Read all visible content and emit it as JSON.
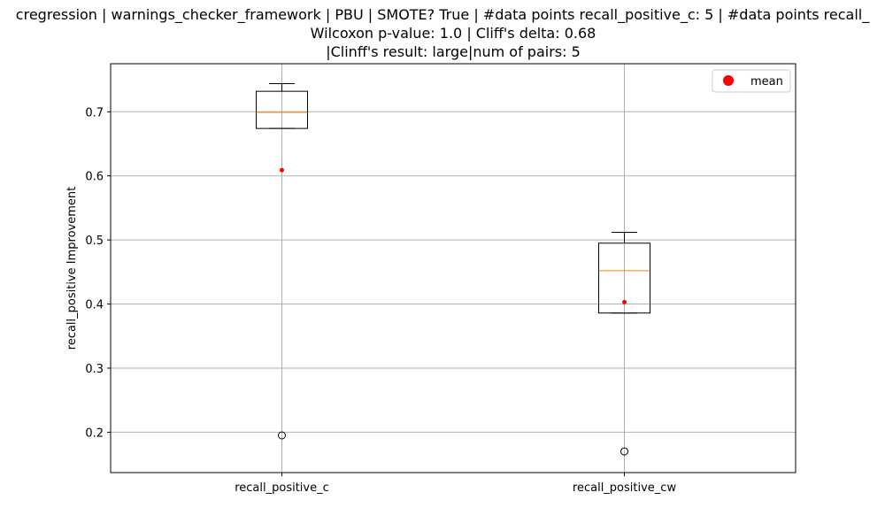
{
  "chart_data": {
    "type": "box",
    "title_lines": [
      "cregression | warnings_checker_framework | PBU | SMOTE? True | #data points recall_positive_c: 5 | #data points recall_",
      "Wilcoxon p-value: 1.0 | Cliff's delta: 0.68",
      "|Clinff's result: large|num of pairs: 5"
    ],
    "ylabel": "recall_positive Improvement",
    "xlabel": "",
    "ylim": [
      0.137,
      0.775
    ],
    "yticks": [
      0.2,
      0.3,
      0.4,
      0.5,
      0.6,
      0.7
    ],
    "grid": true,
    "legend": {
      "placement": "top-right",
      "entries": [
        {
          "label": "mean",
          "color": "#ff0000",
          "marker": "circle"
        }
      ]
    },
    "colors": {
      "box": "#000000",
      "median": "#ff7f0e",
      "mean": "#ff0000",
      "grid": "#b0b0b0"
    },
    "categories": [
      "recall_positive_c",
      "recall_positive_cw"
    ],
    "boxes": [
      {
        "name": "recall_positive_c",
        "whisker_low": 0.674,
        "q1": 0.674,
        "median": 0.699,
        "q3": 0.732,
        "whisker_high": 0.744,
        "outliers": [
          0.195
        ],
        "mean": 0.609
      },
      {
        "name": "recall_positive_cw",
        "whisker_low": 0.386,
        "q1": 0.386,
        "median": 0.452,
        "q3": 0.495,
        "whisker_high": 0.512,
        "outliers": [
          0.17
        ],
        "mean": 0.403
      }
    ]
  }
}
